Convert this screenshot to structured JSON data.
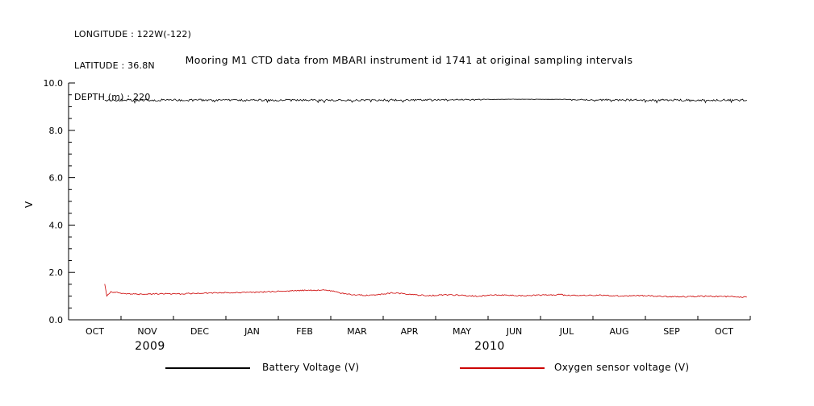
{
  "header": {
    "longitude": "LONGITUDE : 122W(-122)",
    "latitude": "LATITUDE : 36.8N",
    "depth": "DEPTH (m) : 220"
  },
  "title": "Mooring M1 CTD data from MBARI instrument id 1741 at original sampling intervals",
  "chart_data": {
    "type": "line",
    "title": "Mooring M1 CTD data from MBARI instrument id 1741 at original sampling intervals",
    "xlabel": "",
    "ylabel": "V",
    "ylim": [
      0.0,
      10.0
    ],
    "yticks": [
      0.0,
      2.0,
      4.0,
      6.0,
      8.0,
      10.0
    ],
    "ytick_labels": [
      "0.0",
      "2.0",
      "4.0",
      "6.0",
      "8.0",
      "10.0"
    ],
    "y_minor_step": 0.5,
    "grid": false,
    "legend_position": "bottom",
    "x_month_labels": [
      "OCT",
      "NOV",
      "DEC",
      "JAN",
      "FEB",
      "MAR",
      "APR",
      "MAY",
      "JUN",
      "JUL",
      "AUG",
      "SEP",
      "OCT"
    ],
    "x_years": [
      {
        "label": "2009",
        "month_index": 1
      },
      {
        "label": "2010",
        "month_index": 8
      }
    ],
    "series": [
      {
        "name": "Battery Voltage (V)",
        "color": "#000000",
        "type": "noisy-constant",
        "base_value": 9.32,
        "description": "near-constant ~9.3 V with dense downward noise ticks; cleaner segment around JUN-JUL 2010",
        "x_range": [
          0.053,
          0.995
        ],
        "noise_profile": [
          [
            0.053,
            0.09
          ],
          [
            0.3,
            0.09
          ],
          [
            0.5,
            0.08
          ],
          [
            0.58,
            0.04
          ],
          [
            0.63,
            0.012
          ],
          [
            0.72,
            0.012
          ],
          [
            0.76,
            0.06
          ],
          [
            0.82,
            0.08
          ],
          [
            0.995,
            0.09
          ]
        ]
      },
      {
        "name": "Oxygen sensor voltage (V)",
        "color": "#cc0000",
        "type": "line",
        "noise": 0.05,
        "x_range": [
          0.053,
          0.995
        ],
        "keypoints": [
          [
            0.053,
            1.52
          ],
          [
            0.056,
            1.02
          ],
          [
            0.062,
            1.18
          ],
          [
            0.08,
            1.12
          ],
          [
            0.1,
            1.08
          ],
          [
            0.13,
            1.1
          ],
          [
            0.16,
            1.09
          ],
          [
            0.19,
            1.12
          ],
          [
            0.22,
            1.14
          ],
          [
            0.25,
            1.15
          ],
          [
            0.28,
            1.17
          ],
          [
            0.31,
            1.2
          ],
          [
            0.34,
            1.24
          ],
          [
            0.37,
            1.26
          ],
          [
            0.385,
            1.22
          ],
          [
            0.4,
            1.12
          ],
          [
            0.42,
            1.06
          ],
          [
            0.44,
            1.03
          ],
          [
            0.46,
            1.08
          ],
          [
            0.475,
            1.14
          ],
          [
            0.49,
            1.1
          ],
          [
            0.51,
            1.05
          ],
          [
            0.53,
            1.02
          ],
          [
            0.55,
            1.06
          ],
          [
            0.57,
            1.04
          ],
          [
            0.6,
            1.0
          ],
          [
            0.63,
            1.05
          ],
          [
            0.66,
            1.02
          ],
          [
            0.69,
            1.04
          ],
          [
            0.72,
            1.06
          ],
          [
            0.75,
            1.02
          ],
          [
            0.78,
            1.04
          ],
          [
            0.81,
            1.0
          ],
          [
            0.84,
            1.02
          ],
          [
            0.87,
            0.99
          ],
          [
            0.9,
            0.97
          ],
          [
            0.93,
            1.0
          ],
          [
            0.96,
            0.98
          ],
          [
            0.995,
            0.96
          ]
        ]
      }
    ]
  },
  "legend": {
    "battery_label": "Battery Voltage (V)",
    "oxygen_label": "Oxygen sensor voltage (V)"
  }
}
